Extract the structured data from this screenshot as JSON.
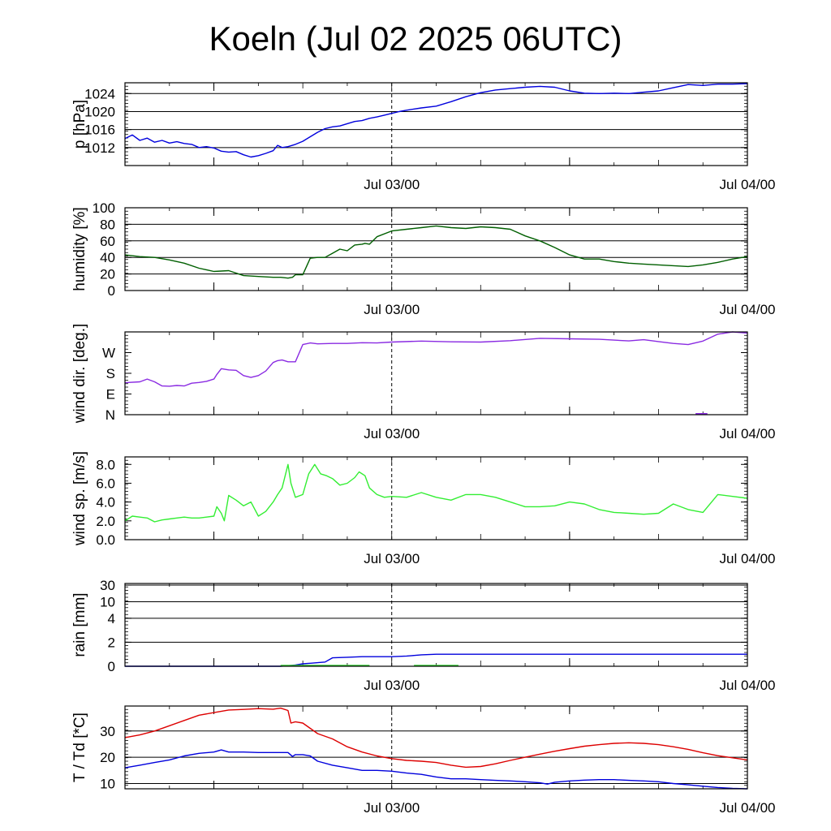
{
  "title": "Koeln (Jul 02 2025 06UTC)",
  "chart_data": [
    {
      "type": "line",
      "ylabel": "p [hPa]",
      "yticks": [
        1012,
        1016,
        1020,
        1024
      ],
      "ylim": [
        1008,
        1026.4
      ],
      "grid": true,
      "xlim": [
        0,
        42
      ],
      "xtick_labels": [
        {
          "x": 18,
          "label": "Jul 03/00"
        },
        {
          "x": 42,
          "label": "Jul 04/00"
        }
      ],
      "series": [
        {
          "color": "#0000dd",
          "x": [
            0,
            0.5,
            1,
            1.5,
            2,
            2.5,
            3,
            3.5,
            4,
            4.5,
            5,
            5.5,
            6,
            6.5,
            7,
            7.5,
            8,
            8.5,
            9,
            9.5,
            10,
            10.3,
            10.6,
            11,
            11.5,
            12,
            12.5,
            13,
            13.5,
            14,
            14.5,
            15,
            15.5,
            16,
            16.5,
            17,
            17.5,
            18,
            18.5,
            19,
            20,
            21,
            22,
            23,
            24,
            25,
            26,
            27,
            28,
            29,
            30,
            31,
            32,
            33,
            34,
            35,
            36,
            37,
            38,
            39,
            40,
            41,
            42
          ],
          "y": [
            1014,
            1014.8,
            1013.6,
            1014.1,
            1013.2,
            1013.6,
            1013.0,
            1013.3,
            1012.9,
            1012.7,
            1012.0,
            1012.2,
            1011.9,
            1011.2,
            1011.0,
            1011.1,
            1010.4,
            1009.9,
            1010.2,
            1010.7,
            1011.3,
            1012.5,
            1012.0,
            1012.2,
            1012.7,
            1013.4,
            1014.4,
            1015.4,
            1016.2,
            1016.6,
            1016.8,
            1017.3,
            1017.8,
            1018.0,
            1018.5,
            1018.8,
            1019.2,
            1019.6,
            1020.0,
            1020.3,
            1020.8,
            1021.2,
            1022.2,
            1023.3,
            1024.2,
            1024.8,
            1025.1,
            1025.4,
            1025.6,
            1025.4,
            1024.6,
            1024.1,
            1024.0,
            1024.1,
            1024.0,
            1024.3,
            1024.6,
            1025.3,
            1026.0,
            1025.8,
            1026.1,
            1026.1,
            1026.2
          ]
        }
      ]
    },
    {
      "type": "line",
      "ylabel": "humidity [%]",
      "yticks": [
        0,
        20,
        40,
        60,
        80,
        100
      ],
      "ylim": [
        0,
        100
      ],
      "grid": true,
      "xlim": [
        0,
        42
      ],
      "xtick_labels": [
        {
          "x": 18,
          "label": "Jul 03/00"
        },
        {
          "x": 42,
          "label": "Jul 04/00"
        }
      ],
      "series": [
        {
          "color": "#005f00",
          "x": [
            0,
            1,
            2,
            3,
            4,
            5,
            6,
            7,
            8,
            9,
            10,
            10.5,
            11,
            11.3,
            11.5,
            12,
            12.5,
            13,
            13.5,
            14,
            14.5,
            15,
            15.5,
            16,
            16.2,
            16.5,
            17,
            18,
            19,
            20,
            21,
            22,
            23,
            24,
            25,
            26,
            27,
            28,
            29,
            30,
            31,
            32,
            33,
            34,
            35,
            36,
            37,
            38,
            39,
            40,
            41,
            42
          ],
          "y": [
            43,
            41,
            40,
            37,
            33,
            27,
            23,
            24,
            18,
            17,
            16,
            16,
            15,
            16,
            19,
            19,
            39,
            40,
            40,
            45,
            50,
            48,
            55,
            56,
            57,
            56,
            65,
            72,
            74,
            76,
            78,
            76,
            75,
            77,
            76,
            74,
            66,
            60,
            52,
            43,
            38,
            38,
            35,
            33,
            32,
            31,
            30,
            29,
            31,
            34,
            38,
            41
          ]
        }
      ]
    },
    {
      "type": "line",
      "ylabel": "wind dir. [deg.]",
      "yticks": [
        "N",
        "E",
        "S",
        "W"
      ],
      "ytick_values": [
        0,
        90,
        180,
        270
      ],
      "ylim": [
        0,
        360
      ],
      "grid": false,
      "xlim": [
        0,
        42
      ],
      "xtick_labels": [
        {
          "x": 18,
          "label": "Jul 03/00"
        },
        {
          "x": 42,
          "label": "Jul 04/00"
        }
      ],
      "series": [
        {
          "color": "#8a2be2",
          "x": [
            0,
            1,
            1.5,
            2,
            2.5,
            3,
            3.5,
            4,
            4.5,
            5,
            5.5,
            6,
            6.2,
            6.5,
            7,
            7.5,
            8,
            8.5,
            9,
            9.5,
            10,
            10.3,
            10.6,
            11,
            11.5,
            12,
            12.5,
            13,
            14,
            15,
            16,
            17,
            18,
            20,
            22,
            24,
            26,
            28,
            30,
            32,
            34,
            35,
            36,
            37,
            38,
            39,
            40,
            41,
            42
          ],
          "y": [
            139,
            143,
            155,
            143,
            125,
            124,
            127,
            125,
            137,
            140,
            145,
            155,
            175,
            200,
            195,
            193,
            170,
            162,
            170,
            190,
            227,
            235,
            238,
            230,
            230,
            305,
            312,
            308,
            310,
            310,
            313,
            312,
            316,
            320,
            317,
            316,
            322,
            332,
            330,
            328,
            321,
            326,
            318,
            310,
            305,
            320,
            350,
            365,
            355
          ]
        }
      ]
    },
    {
      "type": "line",
      "ylabel": "wind sp. [m/s]",
      "yticks": [
        0.0,
        2.0,
        4.0,
        6.0,
        8.0
      ],
      "ytick_labels": [
        "0.0",
        "2.0",
        "4.0",
        "6.0",
        "8.0"
      ],
      "ylim": [
        0,
        8.8
      ],
      "grid": false,
      "xlim": [
        0,
        42
      ],
      "xtick_labels": [
        {
          "x": 18,
          "label": "Jul 03/00"
        },
        {
          "x": 42,
          "label": "Jul 04/00"
        }
      ],
      "series": [
        {
          "color": "#33ee33",
          "x": [
            0,
            0.5,
            1,
            1.5,
            2,
            2.5,
            3,
            3.5,
            4,
            4.5,
            5,
            5.5,
            6,
            6.2,
            6.5,
            6.7,
            7,
            7.5,
            8,
            8.5,
            9,
            9.5,
            10,
            10.3,
            10.6,
            11,
            11.2,
            11.5,
            12,
            12.4,
            12.8,
            13.2,
            13.6,
            14,
            14.5,
            15,
            15.5,
            15.8,
            16.2,
            16.5,
            17,
            17.5,
            18,
            19,
            20,
            21,
            22,
            23,
            24,
            25,
            26,
            27,
            28,
            29,
            30,
            31,
            32,
            33,
            34,
            35,
            36,
            37,
            38,
            39,
            40,
            41,
            42
          ],
          "y": [
            2.0,
            2.5,
            2.4,
            2.3,
            1.9,
            2.1,
            2.2,
            2.3,
            2.4,
            2.3,
            2.3,
            2.4,
            2.5,
            3.5,
            2.8,
            2.0,
            4.7,
            4.2,
            3.6,
            4.0,
            2.5,
            3.0,
            4.0,
            4.8,
            5.5,
            8.0,
            6.0,
            4.5,
            4.8,
            7.0,
            8.0,
            7.0,
            6.8,
            6.5,
            5.8,
            6.0,
            6.6,
            7.2,
            6.8,
            5.5,
            4.8,
            4.5,
            4.6,
            4.5,
            5.0,
            4.5,
            4.2,
            4.8,
            4.8,
            4.5,
            4.0,
            3.5,
            3.5,
            3.6,
            4.0,
            3.8,
            3.2,
            2.9,
            2.8,
            2.7,
            2.8,
            3.8,
            3.2,
            2.9,
            4.8,
            4.6,
            4.4
          ]
        }
      ]
    },
    {
      "type": "line",
      "ylabel": "rain [mm]",
      "yticks": [
        0,
        2,
        4,
        10,
        30
      ],
      "ylim": [
        0,
        30
      ],
      "scale": "nonlinear",
      "grid": true,
      "xlim": [
        0,
        42
      ],
      "xtick_labels": [
        {
          "x": 18,
          "label": "Jul 03/00"
        },
        {
          "x": 42,
          "label": "Jul 04/00"
        }
      ],
      "series": [
        {
          "type": "line",
          "color": "#0000dd",
          "x": [
            0,
            10.5,
            11,
            11.5,
            12,
            13,
            13.5,
            14,
            15,
            16,
            17,
            18,
            19,
            19.5,
            20,
            21,
            22,
            30,
            42
          ],
          "y": [
            0,
            0,
            0.05,
            0.1,
            0.2,
            0.3,
            0.35,
            0.7,
            0.75,
            0.8,
            0.8,
            0.8,
            0.85,
            0.9,
            0.95,
            1.0,
            1.0,
            1.0,
            1.0
          ]
        },
        {
          "type": "bar",
          "color": "#33cc33",
          "intervals": [
            [
              10.5,
              16.5
            ],
            [
              19.5,
              22.5
            ]
          ],
          "y": 0.12
        }
      ]
    },
    {
      "type": "line",
      "ylabel": "T / Td [*C]",
      "yticks": [
        10,
        20,
        30
      ],
      "ylim": [
        8,
        39.5
      ],
      "grid": true,
      "xlim": [
        0,
        42
      ],
      "xtick_labels": [
        {
          "x": 18,
          "label": "Jul 03/00"
        },
        {
          "x": 42,
          "label": "Jul 04/00"
        }
      ],
      "series": [
        {
          "color": "#dd0000",
          "x": [
            0,
            1,
            2,
            3,
            4,
            5,
            6,
            7,
            8,
            9,
            10,
            10.5,
            11,
            11.2,
            11.5,
            12,
            12.5,
            13,
            14,
            15,
            16,
            17,
            18,
            19,
            20,
            21,
            22,
            23,
            24,
            25,
            26,
            27,
            28,
            29,
            30,
            31,
            32,
            33,
            34,
            35,
            36,
            37,
            38,
            39,
            40,
            41,
            42
          ],
          "y": [
            27.5,
            28.5,
            30,
            32,
            34,
            36,
            37,
            38,
            38.2,
            38.5,
            38.3,
            38.7,
            37.8,
            33,
            33.5,
            33,
            31,
            29,
            27,
            24,
            22,
            20.5,
            19.5,
            18.8,
            18.5,
            18,
            17,
            16.2,
            16.5,
            17.5,
            18.8,
            20,
            21.2,
            22.3,
            23.3,
            24.2,
            24.8,
            25.3,
            25.5,
            25.3,
            24.8,
            24,
            23,
            21.7,
            20.6,
            19.8,
            19
          ]
        },
        {
          "color": "#0000dd",
          "x": [
            0,
            1,
            2,
            3,
            4,
            5,
            6,
            6.5,
            7,
            8,
            9,
            10,
            10.5,
            11,
            11.3,
            11.5,
            12,
            12.5,
            13,
            14,
            15,
            16,
            17,
            18,
            19,
            20,
            21,
            22,
            23,
            24,
            25,
            26,
            27,
            28,
            28.5,
            29,
            30,
            31,
            32,
            33,
            34,
            35,
            36,
            37,
            38,
            39,
            40,
            41,
            42
          ],
          "y": [
            16,
            17,
            18,
            19,
            20.5,
            21.5,
            22,
            22.8,
            22,
            22,
            21.8,
            21.8,
            21.8,
            21.8,
            20.3,
            21,
            21,
            20.5,
            18.5,
            17,
            16,
            15,
            15,
            14.7,
            14,
            13.5,
            12.5,
            11.8,
            11.8,
            11.5,
            11.2,
            11,
            10.7,
            10.3,
            9.8,
            10.5,
            11,
            11.3,
            11.5,
            11.5,
            11.2,
            11,
            10.7,
            10,
            9.5,
            9,
            8.5,
            8.2,
            8
          ]
        }
      ]
    }
  ]
}
